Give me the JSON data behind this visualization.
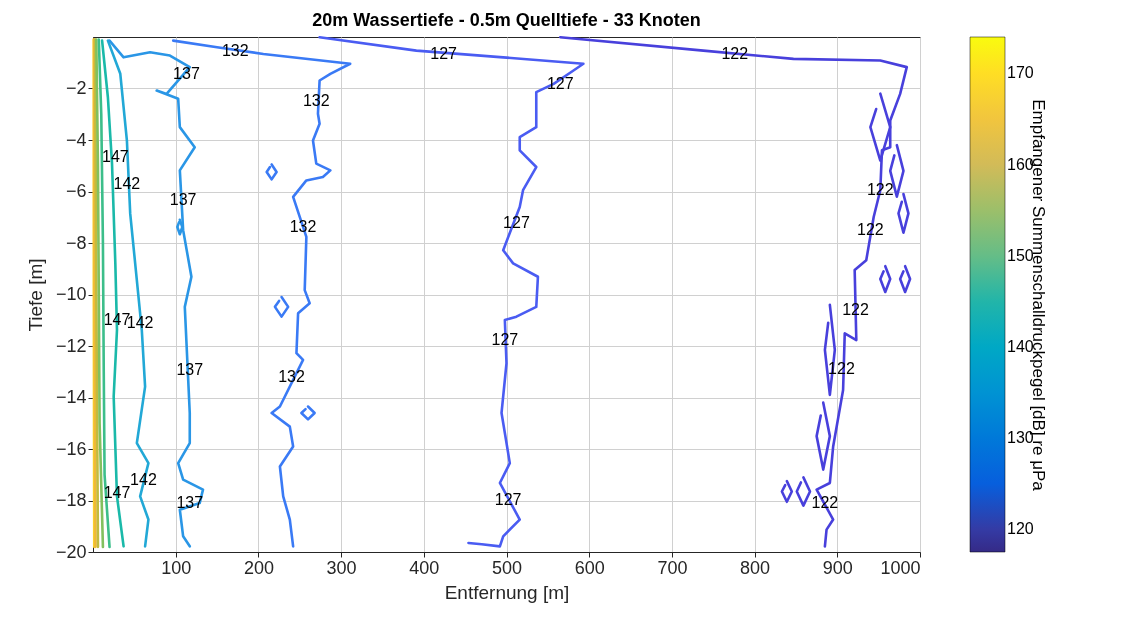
{
  "chart_data": {
    "type": "line",
    "title": "20m Wassertiefe  -  0.5m Quelltiefe  -  33 Knoten",
    "xlabel": "Entfernung [m]",
    "ylabel": "Tiefe [m]",
    "clabel": "Empfangener Summenschalldruckpegel [dB] re μPa",
    "xlim": [
      0,
      1000
    ],
    "xticks": [
      100,
      200,
      300,
      400,
      500,
      600,
      700,
      800,
      900,
      1000
    ],
    "ylim": [
      -20,
      0
    ],
    "yticks": [
      -20,
      -18,
      -16,
      -14,
      -12,
      -10,
      -8,
      -6,
      -4,
      -2
    ],
    "clim": [
      117.5,
      174
    ],
    "cticks": [
      120,
      130,
      140,
      150,
      160,
      170
    ],
    "grid": true,
    "legend": false,
    "line_style": "solid",
    "series": [
      {
        "type": "line",
        "color": "#f9d02c",
        "x": [
          0.8,
          1,
          1.5
        ],
        "values": [
          -0.1,
          -10,
          -19.8
        ]
      },
      {
        "type": "line",
        "color": "#efb838",
        "x": [
          1.5,
          2,
          3
        ],
        "values": [
          -0.1,
          -10,
          -19.8
        ]
      },
      {
        "type": "line",
        "color": "#c2bb3e",
        "x": [
          2.5,
          4,
          6
        ],
        "values": [
          -0.1,
          -10,
          -19.8
        ]
      },
      {
        "type": "line",
        "color": "#82c05e",
        "x": [
          4,
          6,
          7,
          8,
          12
        ],
        "values": [
          -0.1,
          -5,
          -10,
          -15,
          -19.8
        ]
      },
      {
        "type": "line",
        "color": "#3cbe8a",
        "x": [
          7,
          10,
          12,
          13,
          14,
          20
        ],
        "values": [
          -0.1,
          -3,
          -8,
          -13,
          -17,
          -19.8
        ]
      },
      {
        "type": "line",
        "color": "#1ab9a9",
        "x": [
          11,
          18,
          23,
          27,
          29,
          25,
          29,
          37
        ],
        "values": [
          -0.14,
          -2.34,
          -4.92,
          -8.79,
          -11.38,
          -13.96,
          -17.84,
          -19.78
        ]
      },
      {
        "type": "line",
        "color": "#22a8d6",
        "x": [
          18,
          33,
          41,
          45,
          53,
          59,
          63,
          53,
          67,
          57,
          67,
          63
        ],
        "values": [
          -0.14,
          -1.43,
          -4.02,
          -6.86,
          -9.44,
          -11.38,
          -13.58,
          -15.77,
          -16.55,
          -17.84,
          -18.74,
          -19.78
        ]
      },
      {
        "type": "line",
        "color": "#2a96e6",
        "x": [
          20,
          37,
          69,
          93,
          117,
          89,
          77,
          103,
          105,
          123,
          105,
          109,
          119,
          111,
          117,
          117,
          103,
          109,
          133,
          129,
          105,
          109,
          117
        ],
        "values": [
          -0.14,
          -0.79,
          -0.59,
          -0.72,
          -1.17,
          -2.21,
          -2.08,
          -2.4,
          -3.5,
          -4.28,
          -5.18,
          -7.5,
          -9.31,
          -10.48,
          -14.6,
          -15.77,
          -16.55,
          -17.19,
          -17.58,
          -18.1,
          -18.36,
          -19.39,
          -19.78
        ]
      },
      {
        "type": "line",
        "color": "#2a96e6",
        "x": [
          105,
          108,
          105,
          102,
          104
        ],
        "values": [
          -7.1,
          -7.38,
          -7.66,
          -7.38,
          -7.2
        ]
      },
      {
        "type": "line",
        "color": "#3a7af5",
        "x": [
          97,
          150,
          206,
          311,
          287,
          274,
          272,
          274,
          266,
          270,
          287,
          278,
          258,
          242,
          258,
          256,
          262,
          248,
          246,
          254,
          226,
          216,
          238,
          242,
          226,
          230,
          238,
          242
        ],
        "values": [
          -0.14,
          -0.4,
          -0.66,
          -1.04,
          -1.43,
          -1.69,
          -2.98,
          -3.37,
          -4.02,
          -4.92,
          -5.18,
          -5.44,
          -5.57,
          -6.21,
          -7.76,
          -9.83,
          -10.34,
          -10.73,
          -12.28,
          -12.54,
          -14.35,
          -14.6,
          -15.13,
          -15.9,
          -16.68,
          -17.84,
          -18.74,
          -19.78
        ]
      },
      {
        "type": "line",
        "color": "#3a7af5",
        "x": [
          216,
          222,
          216,
          210,
          214
        ],
        "values": [
          -4.95,
          -5.24,
          -5.53,
          -5.24,
          -5.05
        ]
      },
      {
        "type": "line",
        "color": "#3a7af5",
        "x": [
          228,
          236,
          228,
          220,
          225
        ],
        "values": [
          -10.1,
          -10.48,
          -10.86,
          -10.48,
          -10.25
        ]
      },
      {
        "type": "line",
        "color": "#3a7af5",
        "x": [
          260,
          268,
          260,
          252,
          257
        ],
        "values": [
          -14.35,
          -14.6,
          -14.85,
          -14.6,
          -14.45
        ]
      },
      {
        "type": "line",
        "color": "#4a5cf2",
        "x": [
          274,
          391,
          496,
          593,
          581,
          557,
          536,
          536,
          516,
          516,
          536,
          520,
          516,
          496,
          508,
          538,
          536,
          512,
          498,
          500,
          494,
          504,
          492,
          516,
          496,
          492,
          470,
          454
        ],
        "values": [
          -0.01,
          -0.53,
          -0.79,
          -1.04,
          -1.3,
          -1.82,
          -2.14,
          -3.5,
          -3.89,
          -4.4,
          -5.05,
          -5.95,
          -6.6,
          -8.28,
          -8.79,
          -9.31,
          -10.48,
          -10.86,
          -10.99,
          -12.67,
          -14.6,
          -16.55,
          -17.32,
          -18.74,
          -19.39,
          -19.78,
          -19.7,
          -19.65
        ]
      },
      {
        "type": "line",
        "color": "#4840dc",
        "x": [
          565,
          738,
          847,
          952,
          984,
          976,
          964,
          964,
          954,
          952,
          944,
          935,
          921,
          923,
          909,
          907,
          895,
          891,
          875,
          895,
          887,
          885
        ],
        "values": [
          -0.01,
          -0.53,
          -0.85,
          -0.91,
          -1.17,
          -2.21,
          -3.24,
          -4.28,
          -4.4,
          -5.95,
          -6.99,
          -8.67,
          -9.05,
          -11.77,
          -11.51,
          -13.71,
          -15.9,
          -17.32,
          -17.58,
          -18.74,
          -19.13,
          -19.78
        ]
      },
      {
        "type": "line",
        "color": "#4840dc",
        "x": [
          952,
          964,
          952,
          940,
          947
        ],
        "values": [
          -2.2,
          -3.5,
          -4.8,
          -3.5,
          -2.8
        ]
      },
      {
        "type": "line",
        "color": "#4840dc",
        "x": [
          972,
          980,
          972,
          964,
          969
        ],
        "values": [
          -4.2,
          -5.2,
          -6.2,
          -5.2,
          -4.6
        ]
      },
      {
        "type": "line",
        "color": "#4840dc",
        "x": [
          980,
          986,
          980,
          974,
          978
        ],
        "values": [
          -6.1,
          -6.85,
          -7.6,
          -6.85,
          -6.4
        ]
      },
      {
        "type": "line",
        "color": "#4840dc",
        "x": [
          958,
          964,
          958,
          952,
          956
        ],
        "values": [
          -8.9,
          -9.4,
          -9.9,
          -9.4,
          -9.1
        ]
      },
      {
        "type": "line",
        "color": "#4840dc",
        "x": [
          982,
          988,
          982,
          976,
          980
        ],
        "values": [
          -8.9,
          -9.4,
          -9.9,
          -9.4,
          -9.1
        ]
      },
      {
        "type": "line",
        "color": "#4840dc",
        "x": [
          891,
          897,
          891,
          885,
          889
        ],
        "values": [
          -10.4,
          -12.15,
          -13.9,
          -12.15,
          -11.1
        ]
      },
      {
        "type": "line",
        "color": "#4840dc",
        "x": [
          883,
          891,
          883,
          875,
          880
        ],
        "values": [
          -14.2,
          -15.5,
          -16.8,
          -15.5,
          -14.7
        ]
      },
      {
        "type": "line",
        "color": "#4840dc",
        "x": [
          859,
          867,
          859,
          851,
          856
        ],
        "values": [
          -17.1,
          -17.65,
          -18.2,
          -17.65,
          -17.3
        ]
      },
      {
        "type": "line",
        "color": "#4840dc",
        "x": [
          839,
          845,
          839,
          833,
          837
        ],
        "values": [
          -17.25,
          -17.65,
          -18.05,
          -17.65,
          -17.4
        ]
      }
    ],
    "annotations": [
      {
        "text": "132",
        "x": 172,
        "y": -0.53
      },
      {
        "text": "132",
        "x": 270,
        "y": -2.47
      },
      {
        "text": "132",
        "x": 254,
        "y": -7.38
      },
      {
        "text": "132",
        "x": 240,
        "y": -13.19
      },
      {
        "text": "137",
        "x": 113,
        "y": -1.43
      },
      {
        "text": "137",
        "x": 109,
        "y": -6.34
      },
      {
        "text": "137",
        "x": 117,
        "y": -12.93
      },
      {
        "text": "137",
        "x": 117,
        "y": -18.1
      },
      {
        "text": "142",
        "x": 41,
        "y": -5.69
      },
      {
        "text": "142",
        "x": 57,
        "y": -11.12
      },
      {
        "text": "142",
        "x": 61,
        "y": -17.19
      },
      {
        "text": "147",
        "x": 27,
        "y": -4.66
      },
      {
        "text": "147",
        "x": 29,
        "y": -10.99
      },
      {
        "text": "147",
        "x": 29,
        "y": -17.7
      },
      {
        "text": "127",
        "x": 424,
        "y": -0.66
      },
      {
        "text": "127",
        "x": 565,
        "y": -1.82
      },
      {
        "text": "127",
        "x": 512,
        "y": -7.24
      },
      {
        "text": "127",
        "x": 498,
        "y": -11.77
      },
      {
        "text": "127",
        "x": 502,
        "y": -17.97
      },
      {
        "text": "122",
        "x": 776,
        "y": -0.66
      },
      {
        "text": "122",
        "x": 952,
        "y": -5.95
      },
      {
        "text": "122",
        "x": 940,
        "y": -7.5
      },
      {
        "text": "122",
        "x": 922,
        "y": -10.6
      },
      {
        "text": "122",
        "x": 905,
        "y": -12.9
      },
      {
        "text": "122",
        "x": 885,
        "y": -18.1
      }
    ]
  }
}
